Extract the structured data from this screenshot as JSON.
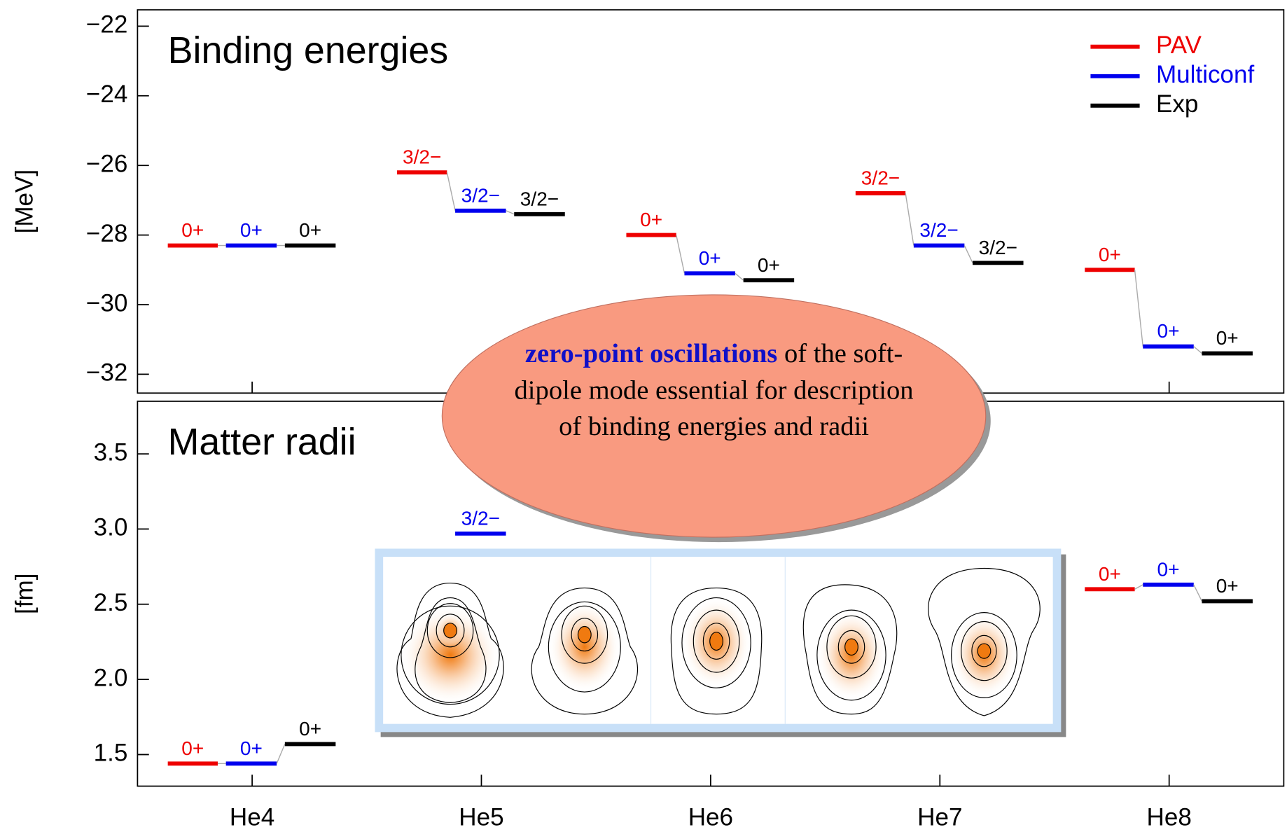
{
  "chart_data": {
    "type": "level",
    "categories": [
      "He4",
      "He5",
      "He6",
      "He7",
      "He8"
    ],
    "series": [
      {
        "name": "PAV",
        "color": "#ee0000"
      },
      {
        "name": "Multiconf",
        "color": "#0000ee"
      },
      {
        "name": "Exp",
        "color": "#000000"
      }
    ],
    "panels": [
      {
        "title": "Binding energies",
        "y_label": "[MeV]",
        "ylim": [
          -32.54,
          -21.53
        ],
        "yticks": [
          {
            "value": -22,
            "label": "−22"
          },
          {
            "value": -24,
            "label": "−24"
          },
          {
            "value": -26,
            "label": "−26"
          },
          {
            "value": -28,
            "label": "−28"
          },
          {
            "value": -30,
            "label": "−30"
          },
          {
            "value": -32,
            "label": "−32"
          }
        ],
        "values": [
          [
            -28.3,
            -26.2,
            -28.0,
            -26.8,
            -29.0
          ],
          [
            -28.3,
            -27.3,
            -29.1,
            -28.3,
            -31.2
          ],
          [
            -28.3,
            -27.4,
            -29.3,
            -28.8,
            -31.4
          ]
        ],
        "spin_labels": [
          [
            "0+",
            "3/2−",
            "0+",
            "3/2−",
            "0+"
          ],
          [
            "0+",
            "3/2−",
            "0+",
            "3/2−",
            "0+"
          ],
          [
            "0+",
            "3/2−",
            "0+",
            "3/2−",
            "0+"
          ]
        ]
      },
      {
        "title": "Matter radii",
        "y_label": "[fm]",
        "ylim": [
          1.29,
          3.85
        ],
        "yticks": [
          1.5,
          {
            "value": 2,
            "label": "2.0"
          },
          2.5,
          {
            "value": 3,
            "label": "3.0"
          },
          3.5
        ],
        "values": [
          [
            1.44,
            null,
            null,
            null,
            2.6
          ],
          [
            1.44,
            2.97,
            null,
            null,
            2.63
          ],
          [
            1.57,
            null,
            null,
            null,
            2.52
          ]
        ],
        "spin_labels": [
          [
            "0+",
            null,
            null,
            null,
            "0+"
          ],
          [
            "0+",
            "3/2−",
            null,
            null,
            "0+"
          ],
          [
            "0+",
            null,
            null,
            null,
            "0+"
          ]
        ]
      }
    ],
    "annotation_emphasis": "zero-point oscillations",
    "annotation": "of the soft-dipole mode essential for description of binding energies and radii"
  }
}
